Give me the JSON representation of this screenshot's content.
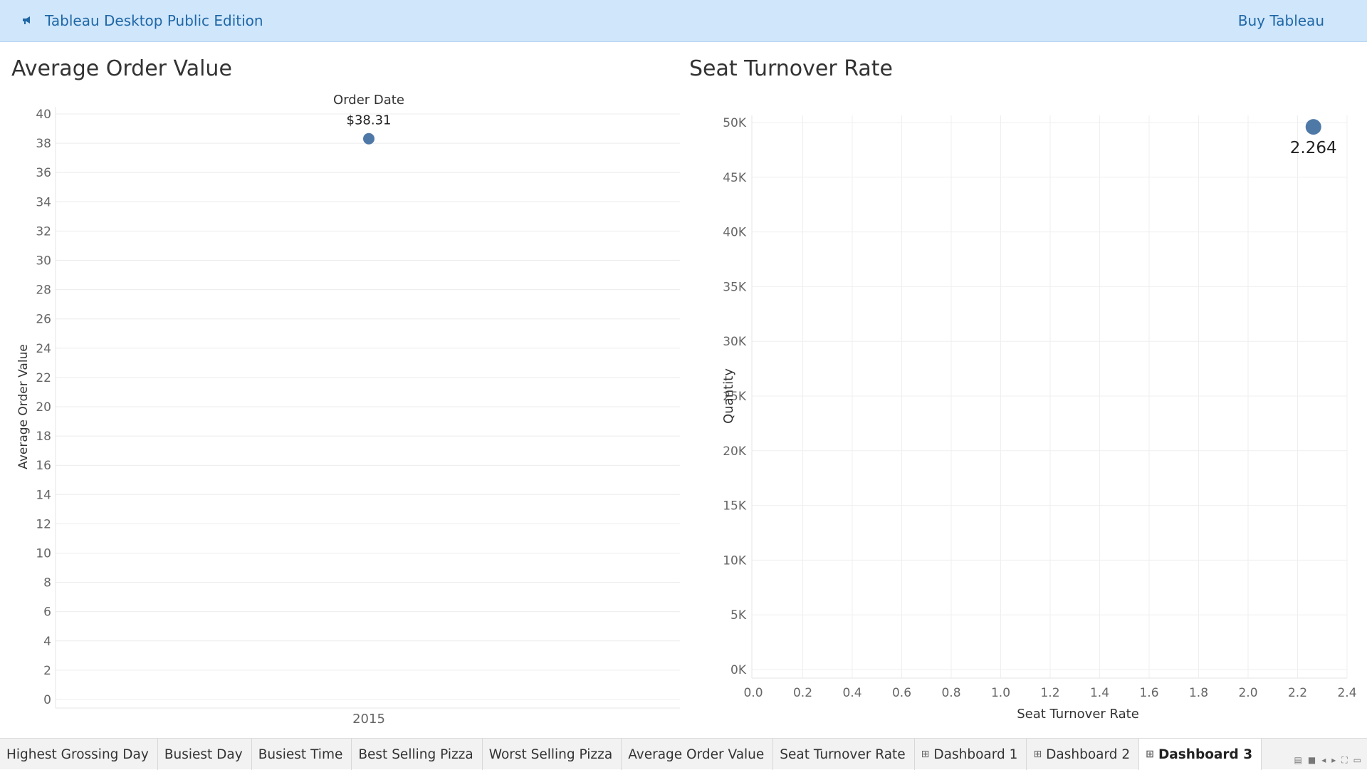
{
  "header": {
    "app_title": "Tableau Desktop Public Edition",
    "buy_label": "Buy Tableau",
    "megaphone_icon": "megaphone-icon"
  },
  "sheets": [
    {
      "title": "Average Order Value",
      "chart_data": {
        "type": "scatter",
        "column_header": "Order Date",
        "categories": [
          "2015"
        ],
        "values": [
          38.31
        ],
        "data_labels": [
          "$38.31"
        ],
        "ylabel": "Average Order Value",
        "ylim": [
          0,
          40
        ],
        "yticks": [
          "0",
          "2",
          "4",
          "6",
          "8",
          "10",
          "12",
          "14",
          "16",
          "18",
          "20",
          "22",
          "24",
          "26",
          "28",
          "30",
          "32",
          "34",
          "36",
          "38",
          "40"
        ],
        "grid": true,
        "mark_color": "#4e79a7"
      }
    },
    {
      "title": "Seat Turnover Rate",
      "chart_data": {
        "type": "scatter",
        "x": [
          2.264
        ],
        "y": [
          49600
        ],
        "data_labels": [
          "2.264"
        ],
        "xlabel": "Seat Turnover Rate",
        "ylabel": "Quantity",
        "xlim": [
          0,
          2.4
        ],
        "ylim": [
          0,
          50000
        ],
        "xticks": [
          "0.0",
          "0.2",
          "0.4",
          "0.6",
          "0.8",
          "1.0",
          "1.2",
          "1.4",
          "1.6",
          "1.8",
          "2.0",
          "2.2",
          "2.4"
        ],
        "yticks": [
          "0K",
          "5K",
          "10K",
          "15K",
          "20K",
          "25K",
          "30K",
          "35K",
          "40K",
          "45K",
          "50K"
        ],
        "grid": true,
        "mark_color": "#4e79a7"
      }
    }
  ],
  "tabs": [
    {
      "label": "Highest Grossing Day",
      "dashboard": false,
      "active": false
    },
    {
      "label": "Busiest Day",
      "dashboard": false,
      "active": false
    },
    {
      "label": "Busiest Time",
      "dashboard": false,
      "active": false
    },
    {
      "label": "Best Selling Pizza",
      "dashboard": false,
      "active": false
    },
    {
      "label": "Worst Selling Pizza",
      "dashboard": false,
      "active": false
    },
    {
      "label": "Average Order Value",
      "dashboard": false,
      "active": false
    },
    {
      "label": "Seat Turnover Rate",
      "dashboard": false,
      "active": false
    },
    {
      "label": "Dashboard 1",
      "dashboard": true,
      "active": false
    },
    {
      "label": "Dashboard 2",
      "dashboard": true,
      "active": false
    },
    {
      "label": "Dashboard 3",
      "dashboard": true,
      "active": true
    }
  ]
}
